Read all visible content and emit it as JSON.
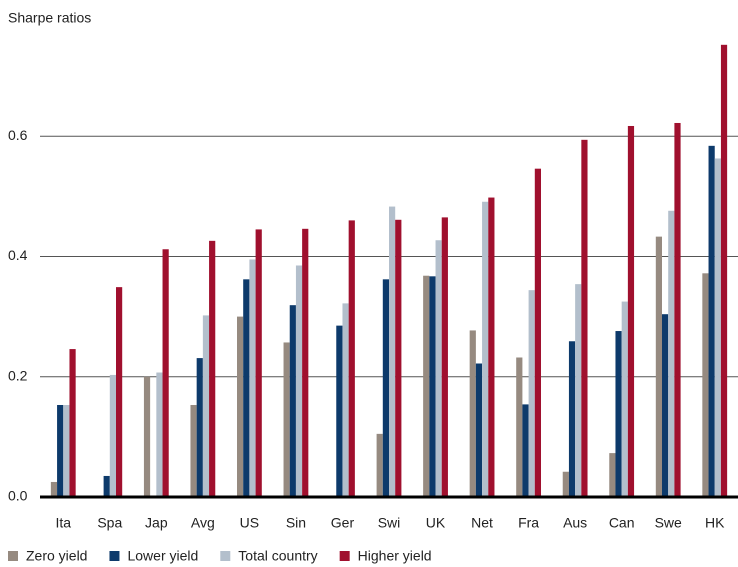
{
  "chart_data": {
    "type": "bar",
    "title": "Sharpe ratios",
    "categories": [
      "Ita",
      "Spa",
      "Jap",
      "Avg",
      "US",
      "Sin",
      "Ger",
      "Swi",
      "UK",
      "Net",
      "Fra",
      "Aus",
      "Can",
      "Swe",
      "HK"
    ],
    "series": [
      {
        "name": "Zero yield",
        "color": "#968a80",
        "values": [
          0.025,
          null,
          0.2,
          0.153,
          0.3,
          0.257,
          null,
          0.105,
          0.368,
          0.277,
          0.232,
          0.042,
          0.073,
          0.433,
          0.372
        ]
      },
      {
        "name": "Lower yield",
        "color": "#0d3a6b",
        "values": [
          0.153,
          0.035,
          null,
          0.231,
          0.362,
          0.319,
          0.285,
          0.362,
          0.367,
          0.222,
          0.154,
          0.259,
          0.276,
          0.304,
          0.584
        ]
      },
      {
        "name": "Total country",
        "color": "#b3bfcc",
        "values": [
          0.153,
          0.203,
          0.207,
          0.302,
          0.395,
          0.385,
          0.322,
          0.483,
          0.427,
          0.491,
          0.344,
          0.354,
          0.325,
          0.476,
          0.563
        ]
      },
      {
        "name": "Higher yield",
        "color": "#a0102e",
        "values": [
          0.246,
          0.349,
          0.412,
          0.426,
          0.445,
          0.446,
          0.46,
          0.461,
          0.465,
          0.498,
          0.546,
          0.594,
          0.617,
          0.622,
          0.752
        ]
      }
    ],
    "ylim": [
      0,
      0.76
    ],
    "yticks": [
      {
        "value": 0,
        "label": "0.0"
      },
      0.2,
      0.4,
      0.6
    ],
    "grid": true,
    "legend": "bottom"
  }
}
